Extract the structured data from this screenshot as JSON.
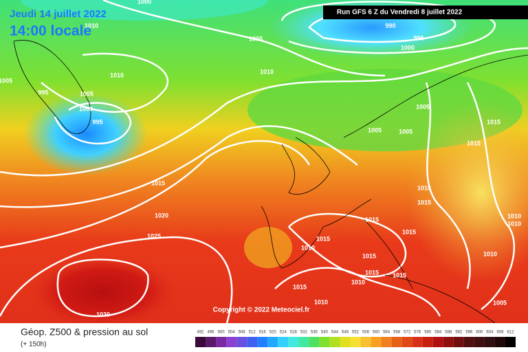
{
  "header": {
    "date": "Jeudi 14 juillet 2022",
    "time": "14:00 locale",
    "run": "Run GFS 6 Z du Vendredi 8 juillet 2022"
  },
  "isobar_labels": [
    "1000",
    "1010",
    "1005",
    "990",
    "995",
    "1000",
    "1005",
    "995",
    "1005",
    "1010",
    "1010",
    "1000",
    "995",
    "1005",
    "1005",
    "1005",
    "1015",
    "1015",
    "1015",
    "1015",
    "1015",
    "1020",
    "1025",
    "1015",
    "1015",
    "1015",
    "1010",
    "1015",
    "1015",
    "1015",
    "1010",
    "1010",
    "1010",
    "1015",
    "1010",
    "1010",
    "1030",
    "1005"
  ],
  "copyright": "Copyright © 2022 Meteociel.fr",
  "legend": {
    "title": "Géop. Z500 & pression au sol",
    "lead": "(+ 150h)",
    "labels": [
      "492",
      "496",
      "500",
      "504",
      "508",
      "512",
      "516",
      "520",
      "524",
      "528",
      "532",
      "536",
      "540",
      "544",
      "548",
      "552",
      "556",
      "560",
      "564",
      "568",
      "572",
      "576",
      "580",
      "584",
      "588",
      "592",
      "596",
      "600",
      "604",
      "608",
      "612"
    ]
  }
}
